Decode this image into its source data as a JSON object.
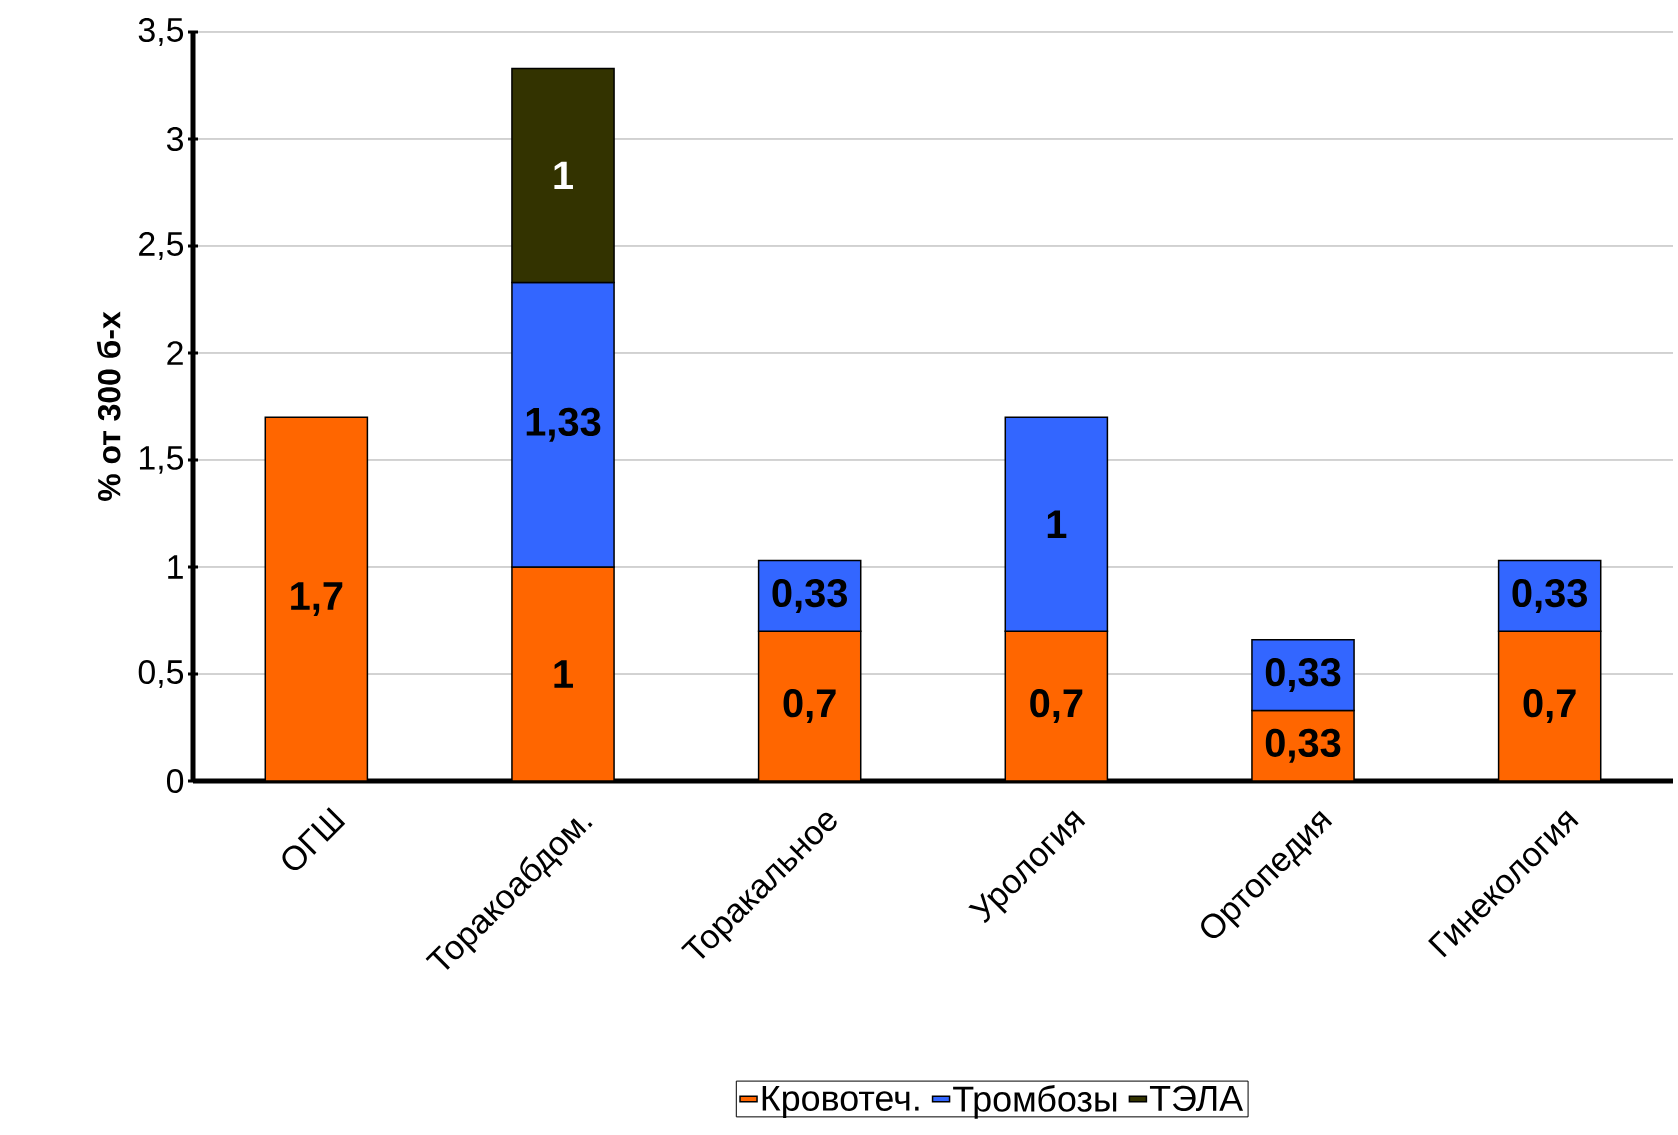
{
  "chart_data": {
    "type": "bar",
    "stacked": true,
    "ylabel": "% от 300 б-х",
    "categories": [
      "ОГШ",
      "Торакоабдом.",
      "Торакальное",
      "Урология",
      "Ортопедия",
      "Гинекология"
    ],
    "series": [
      {
        "name": "Кровотеч.",
        "color": "#ff6600",
        "values": [
          1.7,
          1,
          0.7,
          0.7,
          0.33,
          0.7
        ],
        "value_labels": [
          "1,7",
          "1",
          "0,7",
          "0,7",
          "0,33",
          "0,7"
        ]
      },
      {
        "name": "Тромбозы",
        "color": "#3366ff",
        "values": [
          null,
          1.33,
          0.33,
          1,
          0.33,
          0.33
        ],
        "value_labels": [
          null,
          "1,33",
          "0,33",
          "1",
          "0,33",
          "0,33"
        ]
      },
      {
        "name": "ТЭЛА",
        "color": "#333300",
        "values": [
          null,
          1,
          null,
          null,
          null,
          null
        ],
        "value_labels": [
          null,
          "1",
          null,
          null,
          null,
          null
        ]
      }
    ],
    "ylim": [
      0,
      3.5
    ],
    "yticks": [
      0,
      {
        "value": 0.5,
        "label": "0,5"
      },
      1,
      {
        "value": 1.5,
        "label": "1,5"
      },
      2,
      {
        "value": 2.5,
        "label": "2,5"
      },
      3,
      {
        "value": 3.5,
        "label": "3,5"
      }
    ],
    "grid": "y",
    "legend": "bottom"
  }
}
